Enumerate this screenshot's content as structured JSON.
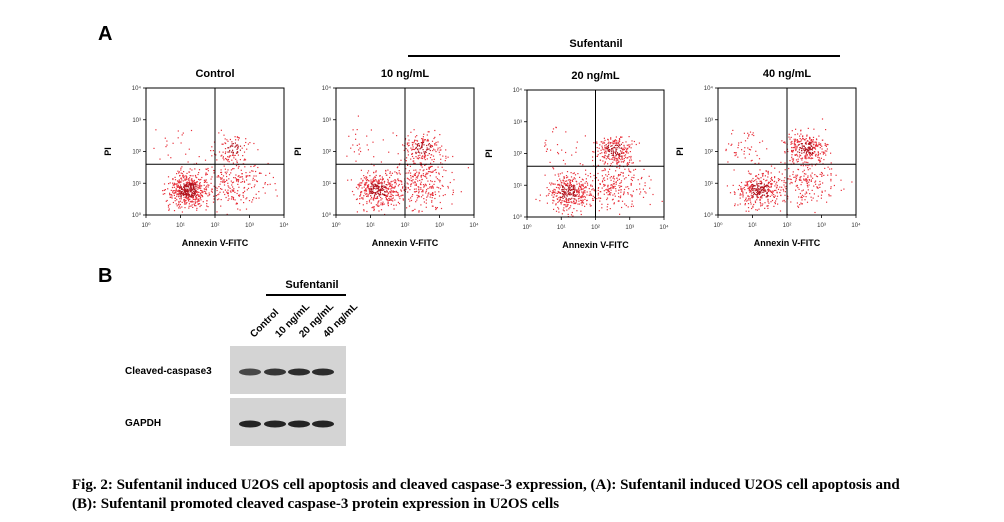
{
  "panel_a": {
    "letter": "A",
    "group_label": "Sufentanil",
    "plots": [
      {
        "title": "Control",
        "xlabel": "Annexin V-FITC",
        "ylabel": "PI",
        "q_ll": 0.6,
        "q_lr": 0.28,
        "q_ul": 0.02,
        "q_ur": 0.1
      },
      {
        "title": "10 ng/mL",
        "xlabel": "Annexin V-FITC",
        "ylabel": "PI",
        "q_ll": 0.45,
        "q_lr": 0.32,
        "q_ul": 0.03,
        "q_ur": 0.2
      },
      {
        "title": "20 ng/mL",
        "xlabel": "Annexin V-FITC",
        "ylabel": "PI",
        "q_ll": 0.42,
        "q_lr": 0.27,
        "q_ul": 0.03,
        "q_ur": 0.28
      },
      {
        "title": "40 ng/mL",
        "xlabel": "Annexin V-FITC",
        "ylabel": "PI",
        "q_ll": 0.4,
        "q_lr": 0.22,
        "q_ul": 0.05,
        "q_ur": 0.33
      }
    ],
    "tick_labels": [
      "10⁰",
      "10¹",
      "10²",
      "10³",
      "10⁴"
    ]
  },
  "panel_b": {
    "letter": "B",
    "group_label": "Sufentanil",
    "lanes": [
      "Control",
      "10 ng/mL",
      "20 ng/mL",
      "40 ng/mL"
    ],
    "rows": [
      {
        "label": "Cleaved-caspase3",
        "intensity": [
          0.75,
          0.85,
          0.9,
          0.9
        ]
      },
      {
        "label": "GAPDH",
        "intensity": [
          0.95,
          0.95,
          0.95,
          0.95
        ]
      }
    ]
  },
  "caption": {
    "line1": "Fig. 2: Sufentanil induced U2OS cell apoptosis and cleaved caspase-3 expression, (A): Sufentanil induced U2OS cell apoptosis and",
    "line2": "(B): Sufentanil promoted cleaved caspase-3 protein expression in U2OS cells"
  },
  "colors": {
    "dots": "#e8323c",
    "dots_dense": "#b3121c",
    "blot_bg": "#d4d4d4",
    "band": "#1a1a1a"
  }
}
